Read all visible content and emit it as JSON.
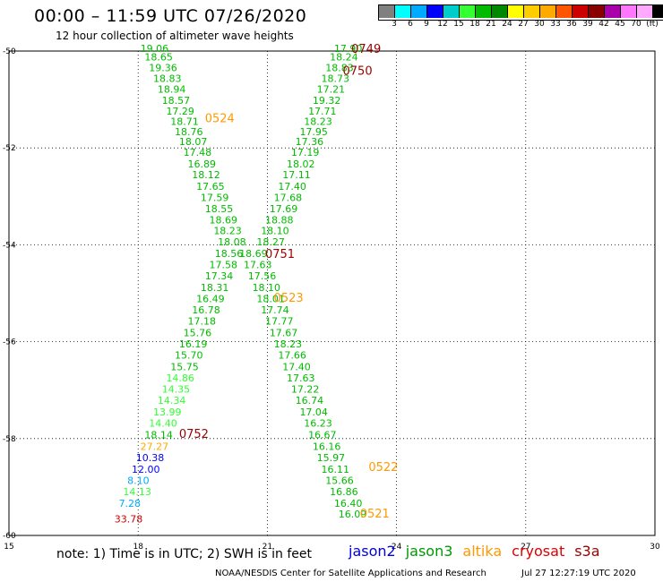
{
  "header": {
    "title": "00:00 – 11:59 UTC 07/26/2020",
    "subtitle": "12 hour collection of altimeter wave heights"
  },
  "colorbar": {
    "colors": [
      "#808080",
      "#00ffff",
      "#00aaff",
      "#0000ff",
      "#00cccc",
      "#33ff33",
      "#00bb00",
      "#008800",
      "#ffff00",
      "#ffcc00",
      "#ffaa00",
      "#ff5500",
      "#cc0000",
      "#880000",
      "#aa00aa",
      "#ff77ff",
      "#ffaaff",
      "#000000"
    ],
    "labels": [
      "3",
      "6",
      "9",
      "12",
      "15",
      "18",
      "21",
      "24",
      "27",
      "30",
      "33",
      "36",
      "39",
      "42",
      "45",
      "70",
      "(ft)"
    ]
  },
  "note": "note: 1) Time is in UTC; 2) SWH is in feet",
  "satellites": [
    {
      "name": "jason2",
      "color": "#0000dd"
    },
    {
      "name": "jason3",
      "color": "#009900"
    },
    {
      "name": "altika",
      "color": "#ff9900"
    },
    {
      "name": "cryosat",
      "color": "#dd0000"
    },
    {
      "name": "s3a",
      "color": "#990000"
    }
  ],
  "footer": {
    "org": "NOAA/NESDIS Center for Satellite Applications and Research",
    "timestamp": "Jul 27 12:27:19 UTC 2020"
  },
  "chart_data": {
    "type": "scatter",
    "xlim": [
      15,
      30
    ],
    "ylim": [
      -60,
      -50
    ],
    "xticks": [
      "15",
      "18",
      "21",
      "24",
      "27",
      "30"
    ],
    "yticks": [
      "-50",
      "-52",
      "-54",
      "-56",
      "-58",
      "-60"
    ],
    "grid": true,
    "points": [
      {
        "x": 18.05,
        "y": -49.94,
        "t": "19.06",
        "c": "#00bb00"
      },
      {
        "x": 18.15,
        "y": -50.12,
        "t": "18.65",
        "c": "#00bb00"
      },
      {
        "x": 18.25,
        "y": -50.34,
        "t": "19.36",
        "c": "#00bb00"
      },
      {
        "x": 18.35,
        "y": -50.56,
        "t": "18.83",
        "c": "#00bb00"
      },
      {
        "x": 18.45,
        "y": -50.79,
        "t": "18.94",
        "c": "#00bb00"
      },
      {
        "x": 18.55,
        "y": -51.02,
        "t": "18.57",
        "c": "#00bb00"
      },
      {
        "x": 18.65,
        "y": -51.24,
        "t": "17.29",
        "c": "#00bb00"
      },
      {
        "x": 18.75,
        "y": -51.45,
        "t": "18.71",
        "c": "#00bb00"
      },
      {
        "x": 18.85,
        "y": -51.66,
        "t": "18.76",
        "c": "#00bb00"
      },
      {
        "x": 18.95,
        "y": -51.87,
        "t": "18.07",
        "c": "#00bb00"
      },
      {
        "x": 19.05,
        "y": -52.09,
        "t": "17.48",
        "c": "#00bb00"
      },
      {
        "x": 19.15,
        "y": -52.33,
        "t": "16.89",
        "c": "#00bb00"
      },
      {
        "x": 19.25,
        "y": -52.55,
        "t": "18.12",
        "c": "#00bb00"
      },
      {
        "x": 19.35,
        "y": -52.79,
        "t": "17.65",
        "c": "#00bb00"
      },
      {
        "x": 19.45,
        "y": -53.02,
        "t": "17.59",
        "c": "#00bb00"
      },
      {
        "x": 19.55,
        "y": -53.25,
        "t": "18.55",
        "c": "#00bb00"
      },
      {
        "x": 19.65,
        "y": -53.48,
        "t": "18.69",
        "c": "#00bb00"
      },
      {
        "x": 19.75,
        "y": -53.71,
        "t": "18.23",
        "c": "#00bb00"
      },
      {
        "x": 19.85,
        "y": -53.94,
        "t": "18.08",
        "c": "#00bb00"
      },
      {
        "x": 19.78,
        "y": -54.18,
        "t": "18.56",
        "c": "#00bb00"
      },
      {
        "x": 19.65,
        "y": -54.41,
        "t": "17.58",
        "c": "#00bb00"
      },
      {
        "x": 19.55,
        "y": -54.64,
        "t": "17.34",
        "c": "#00bb00"
      },
      {
        "x": 19.45,
        "y": -54.88,
        "t": "18.31",
        "c": "#00bb00"
      },
      {
        "x": 19.35,
        "y": -55.11,
        "t": "16.49",
        "c": "#00bb00"
      },
      {
        "x": 19.25,
        "y": -55.34,
        "t": "16.78",
        "c": "#00bb00"
      },
      {
        "x": 19.15,
        "y": -55.57,
        "t": "17.18",
        "c": "#00bb00"
      },
      {
        "x": 19.05,
        "y": -55.81,
        "t": "15.76",
        "c": "#00bb00"
      },
      {
        "x": 18.95,
        "y": -56.04,
        "t": "16.19",
        "c": "#00bb00"
      },
      {
        "x": 18.85,
        "y": -56.28,
        "t": "15.70",
        "c": "#00bb00"
      },
      {
        "x": 18.75,
        "y": -56.52,
        "t": "15.75",
        "c": "#00bb00"
      },
      {
        "x": 18.65,
        "y": -56.75,
        "t": "14.86",
        "c": "#33ff33"
      },
      {
        "x": 18.55,
        "y": -56.98,
        "t": "14.35",
        "c": "#33ff33"
      },
      {
        "x": 18.45,
        "y": -57.21,
        "t": "14.34",
        "c": "#33ff33"
      },
      {
        "x": 18.35,
        "y": -57.45,
        "t": "13.99",
        "c": "#33ff33"
      },
      {
        "x": 18.25,
        "y": -57.68,
        "t": "14.40",
        "c": "#33ff33"
      },
      {
        "x": 18.15,
        "y": -57.92,
        "t": "18.14",
        "c": "#00bb00"
      },
      {
        "x": 18.05,
        "y": -58.16,
        "t": "27.27",
        "c": "#ffaa00"
      },
      {
        "x": 17.95,
        "y": -58.39,
        "t": "10.38",
        "c": "#0000ff"
      },
      {
        "x": 17.85,
        "y": -58.63,
        "t": "12.00",
        "c": "#0000ff"
      },
      {
        "x": 17.75,
        "y": -58.86,
        "t": "8.10",
        "c": "#00aaff"
      },
      {
        "x": 17.65,
        "y": -59.09,
        "t": "14.13",
        "c": "#33ff33"
      },
      {
        "x": 17.55,
        "y": -59.33,
        "t": "7.28",
        "c": "#00aaff"
      },
      {
        "x": 17.45,
        "y": -59.66,
        "t": "33.78",
        "c": "#cc0000"
      },
      {
        "x": 22.55,
        "y": -49.94,
        "t": "17.90",
        "c": "#00bb00"
      },
      {
        "x": 22.45,
        "y": -50.12,
        "t": "18.24",
        "c": "#00bb00"
      },
      {
        "x": 22.35,
        "y": -50.34,
        "t": "18.83",
        "c": "#00bb00"
      },
      {
        "x": 22.25,
        "y": -50.56,
        "t": "18.73",
        "c": "#00bb00"
      },
      {
        "x": 22.15,
        "y": -50.79,
        "t": "17.21",
        "c": "#00bb00"
      },
      {
        "x": 22.05,
        "y": -51.02,
        "t": "19.32",
        "c": "#00bb00"
      },
      {
        "x": 21.95,
        "y": -51.24,
        "t": "17.71",
        "c": "#00bb00"
      },
      {
        "x": 21.85,
        "y": -51.45,
        "t": "18.23",
        "c": "#00bb00"
      },
      {
        "x": 21.75,
        "y": -51.66,
        "t": "17.95",
        "c": "#00bb00"
      },
      {
        "x": 21.65,
        "y": -51.87,
        "t": "17.36",
        "c": "#00bb00"
      },
      {
        "x": 21.55,
        "y": -52.09,
        "t": "17.19",
        "c": "#00bb00"
      },
      {
        "x": 21.45,
        "y": -52.33,
        "t": "18.02",
        "c": "#00bb00"
      },
      {
        "x": 21.35,
        "y": -52.55,
        "t": "17.11",
        "c": "#00bb00"
      },
      {
        "x": 21.25,
        "y": -52.79,
        "t": "17.40",
        "c": "#00bb00"
      },
      {
        "x": 21.15,
        "y": -53.02,
        "t": "17.68",
        "c": "#00bb00"
      },
      {
        "x": 21.05,
        "y": -53.25,
        "t": "17.69",
        "c": "#00bb00"
      },
      {
        "x": 20.95,
        "y": -53.48,
        "t": "18.88",
        "c": "#00bb00"
      },
      {
        "x": 20.85,
        "y": -53.71,
        "t": "18.10",
        "c": "#00bb00"
      },
      {
        "x": 20.75,
        "y": -53.94,
        "t": "18.27",
        "c": "#00bb00"
      },
      {
        "x": 20.35,
        "y": -54.18,
        "t": "18.69",
        "c": "#00bb00"
      },
      {
        "x": 20.45,
        "y": -54.41,
        "t": "17.63",
        "c": "#00bb00"
      },
      {
        "x": 20.55,
        "y": -54.64,
        "t": "17.56",
        "c": "#00bb00"
      },
      {
        "x": 20.65,
        "y": -54.88,
        "t": "18.10",
        "c": "#00bb00"
      },
      {
        "x": 20.75,
        "y": -55.11,
        "t": "18.01",
        "c": "#00bb00"
      },
      {
        "x": 20.85,
        "y": -55.34,
        "t": "17.74",
        "c": "#00bb00"
      },
      {
        "x": 20.95,
        "y": -55.57,
        "t": "17.77",
        "c": "#00bb00"
      },
      {
        "x": 21.05,
        "y": -55.81,
        "t": "17.67",
        "c": "#00bb00"
      },
      {
        "x": 21.15,
        "y": -56.04,
        "t": "18.23",
        "c": "#00bb00"
      },
      {
        "x": 21.25,
        "y": -56.28,
        "t": "17.66",
        "c": "#00bb00"
      },
      {
        "x": 21.35,
        "y": -56.52,
        "t": "17.40",
        "c": "#00bb00"
      },
      {
        "x": 21.45,
        "y": -56.75,
        "t": "17.63",
        "c": "#00bb00"
      },
      {
        "x": 21.55,
        "y": -56.98,
        "t": "17.22",
        "c": "#00bb00"
      },
      {
        "x": 21.65,
        "y": -57.21,
        "t": "16.74",
        "c": "#00bb00"
      },
      {
        "x": 21.75,
        "y": -57.45,
        "t": "17.04",
        "c": "#00bb00"
      },
      {
        "x": 21.85,
        "y": -57.68,
        "t": "16.23",
        "c": "#00bb00"
      },
      {
        "x": 21.95,
        "y": -57.92,
        "t": "16.67",
        "c": "#00bb00"
      },
      {
        "x": 22.05,
        "y": -58.16,
        "t": "16.16",
        "c": "#00bb00"
      },
      {
        "x": 22.15,
        "y": -58.39,
        "t": "15.97",
        "c": "#00bb00"
      },
      {
        "x": 22.25,
        "y": -58.63,
        "t": "16.11",
        "c": "#00bb00"
      },
      {
        "x": 22.35,
        "y": -58.86,
        "t": "15.66",
        "c": "#00bb00"
      },
      {
        "x": 22.45,
        "y": -59.09,
        "t": "16.86",
        "c": "#00bb00"
      },
      {
        "x": 22.55,
        "y": -59.33,
        "t": "16.40",
        "c": "#00bb00"
      },
      {
        "x": 22.65,
        "y": -59.56,
        "t": "16.09",
        "c": "#00bb00"
      }
    ],
    "time_labels": [
      {
        "x": 22.95,
        "y": -49.94,
        "t": "0749",
        "c": "#990000"
      },
      {
        "x": 22.75,
        "y": -50.4,
        "t": "0750",
        "c": "#990000"
      },
      {
        "x": 19.55,
        "y": -51.38,
        "t": "0524",
        "c": "#ff9900"
      },
      {
        "x": 20.95,
        "y": -54.18,
        "t": "0751",
        "c": "#990000"
      },
      {
        "x": 21.15,
        "y": -55.08,
        "t": "0523",
        "c": "#ff9900"
      },
      {
        "x": 18.95,
        "y": -57.89,
        "t": "0752",
        "c": "#990000"
      },
      {
        "x": 23.35,
        "y": -58.58,
        "t": "0522",
        "c": "#ff9900"
      },
      {
        "x": 23.15,
        "y": -59.54,
        "t": "0521",
        "c": "#ff9900"
      }
    ]
  }
}
